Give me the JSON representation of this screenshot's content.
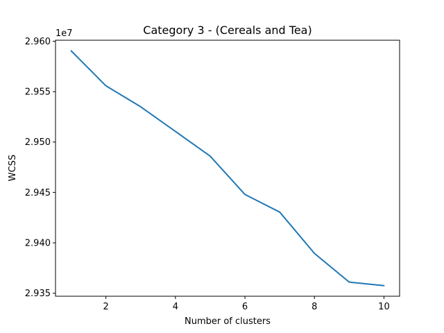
{
  "chart_data": {
    "type": "line",
    "title": "Category 3 - (Cereals and Tea)",
    "xlabel": "Number of clusters",
    "ylabel": "WCSS",
    "y_offset_label": "1e7",
    "x": [
      1,
      2,
      3,
      4,
      5,
      6,
      7,
      8,
      9,
      10
    ],
    "series": [
      {
        "color": "#1f77b4",
        "values": [
          29590500,
          29555800,
          29535000,
          29510500,
          29486000,
          29448000,
          29430500,
          29389500,
          29361000,
          29357500
        ]
      }
    ],
    "xlim": [
      0.55,
      10.45
    ],
    "ylim": [
      29347000,
      29601000
    ],
    "x_ticks": [
      2,
      4,
      6,
      8,
      10
    ],
    "x_tick_labels": [
      "2",
      "4",
      "6",
      "8",
      "10"
    ],
    "y_ticks": [
      29350000,
      29400000,
      29450000,
      29500000,
      29550000,
      29600000
    ],
    "y_tick_labels": [
      "2.935",
      "2.940",
      "2.945",
      "2.950",
      "2.955",
      "2.960"
    ],
    "grid": false,
    "legend": "none"
  }
}
